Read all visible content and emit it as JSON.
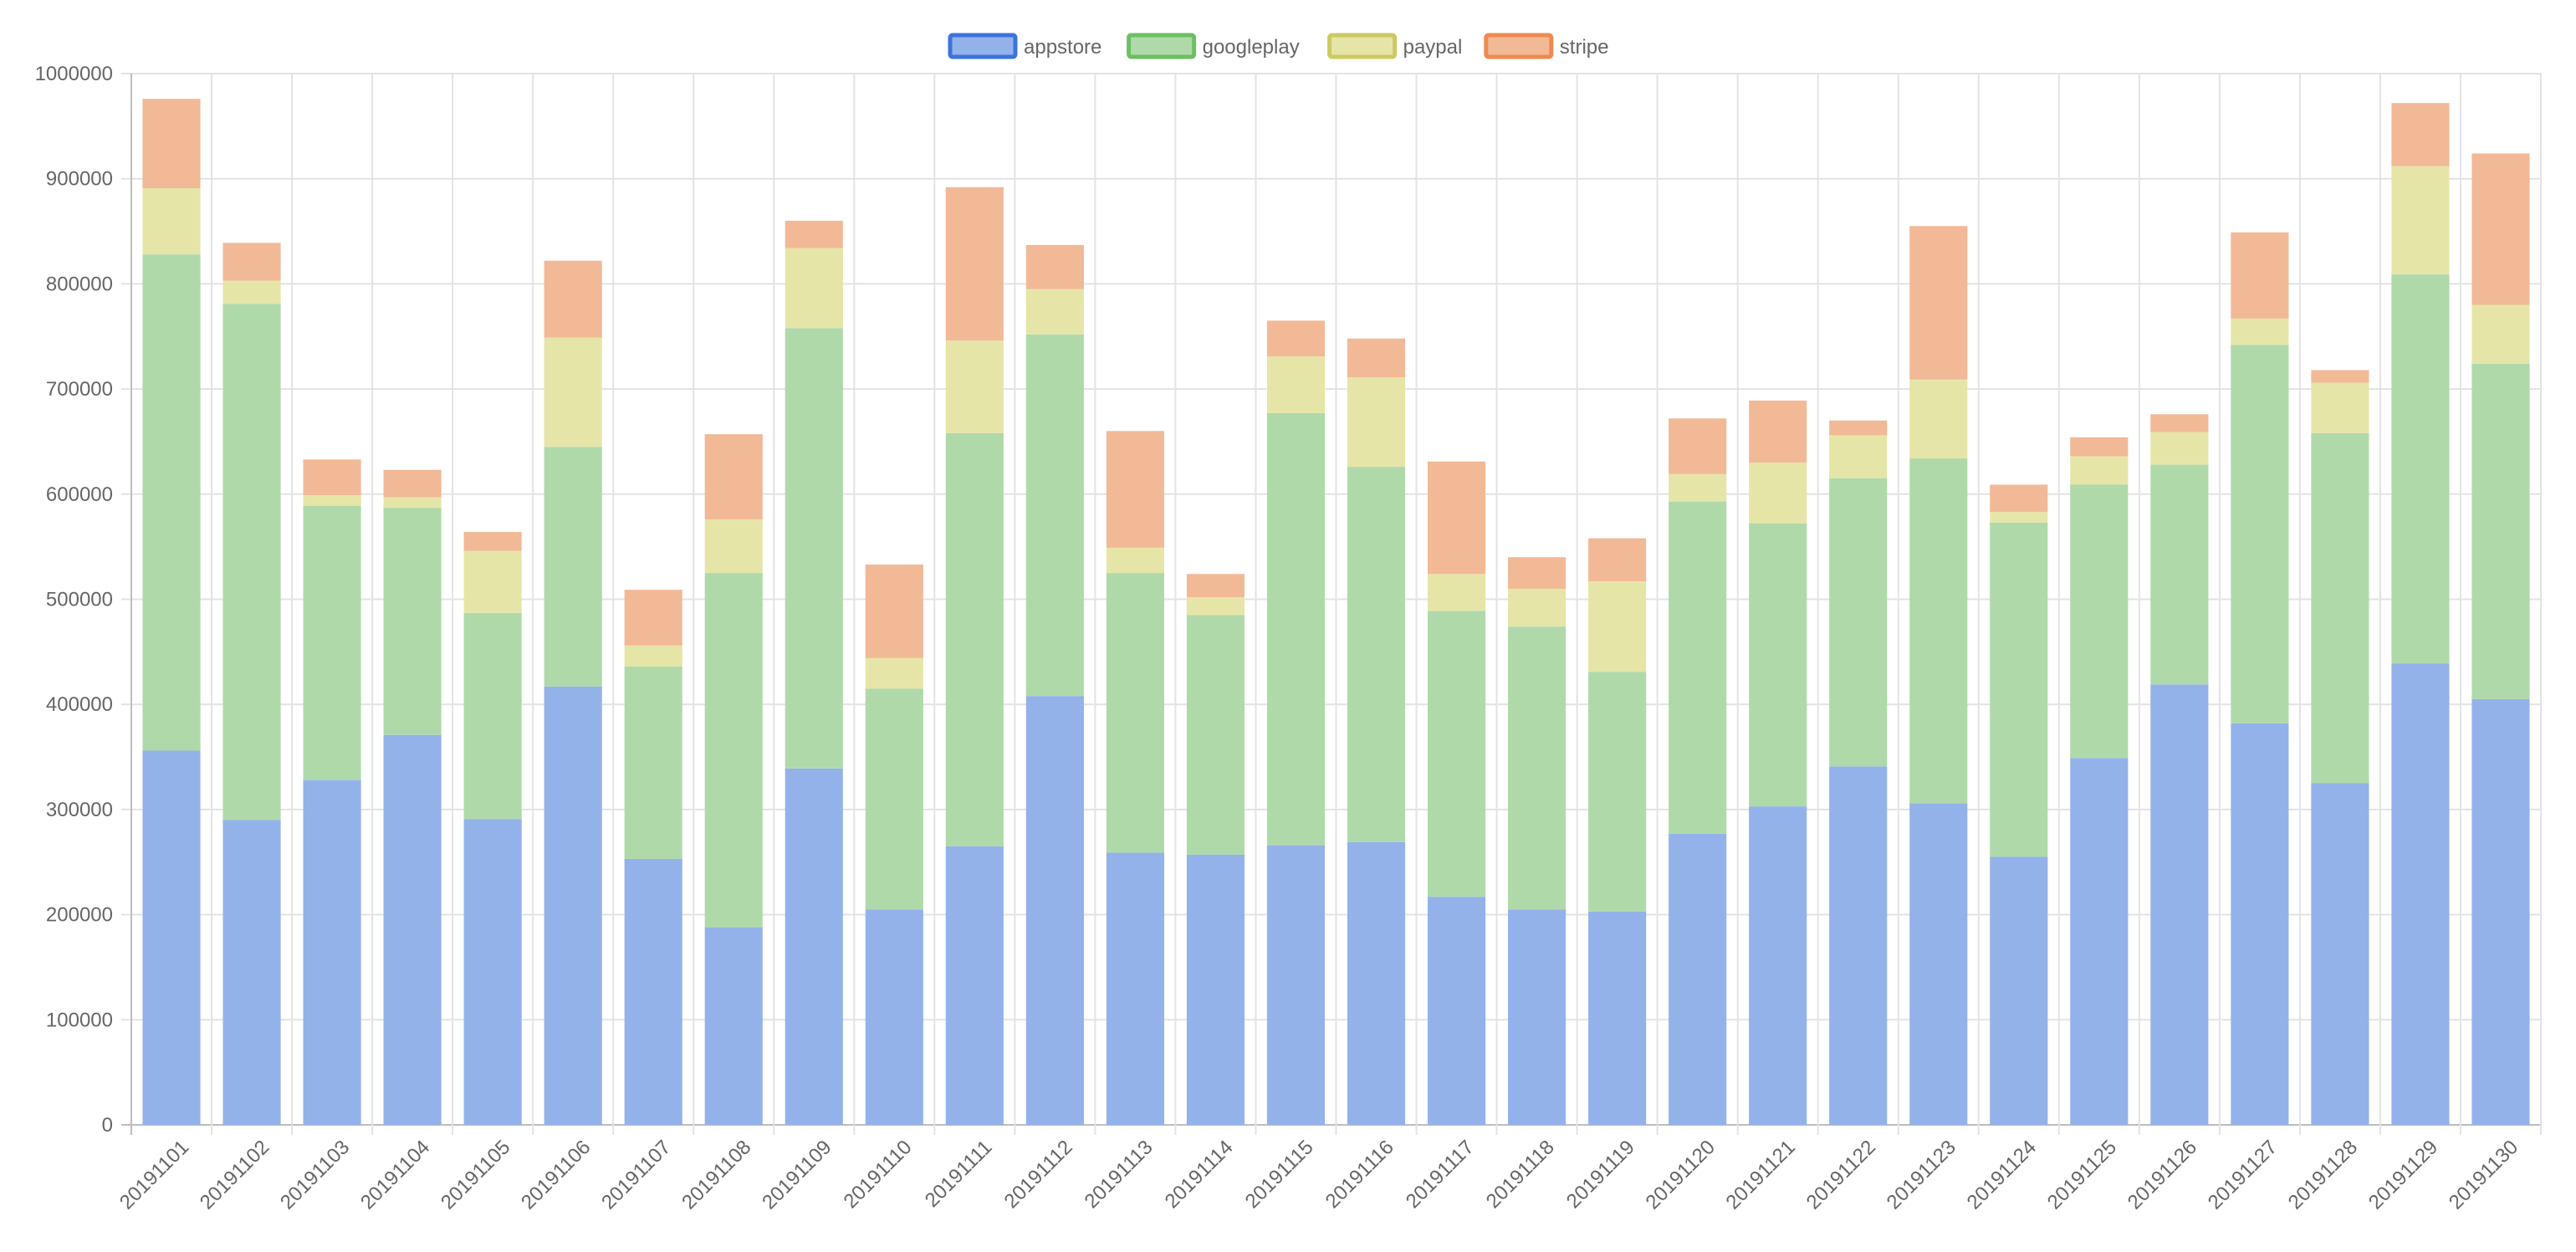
{
  "chart_data": {
    "type": "bar",
    "stacked": true,
    "categories": [
      "20191101",
      "20191102",
      "20191103",
      "20191104",
      "20191105",
      "20191106",
      "20191107",
      "20191108",
      "20191109",
      "20191110",
      "20191111",
      "20191112",
      "20191113",
      "20191114",
      "20191115",
      "20191116",
      "20191117",
      "20191118",
      "20191119",
      "20191120",
      "20191121",
      "20191122",
      "20191123",
      "20191124",
      "20191125",
      "20191126",
      "20191127",
      "20191128",
      "20191129",
      "20191130"
    ],
    "series": [
      {
        "name": "appstore",
        "fill": "#94b2ea",
        "border": "#3c74dc",
        "values": [
          356000,
          290000,
          328000,
          371000,
          291000,
          417000,
          253000,
          188000,
          339000,
          205000,
          265000,
          408000,
          259000,
          257000,
          266000,
          269000,
          217000,
          205000,
          203000,
          277000,
          303000,
          341000,
          306000,
          255000,
          349000,
          419000,
          382000,
          325000,
          439000,
          405000
        ]
      },
      {
        "name": "googleplay",
        "fill": "#b0d9aa",
        "border": "#6dbf63",
        "values": [
          472000,
          491000,
          261000,
          216000,
          196000,
          228000,
          183000,
          337000,
          419000,
          210000,
          393000,
          344000,
          266000,
          228000,
          411000,
          357000,
          272000,
          269000,
          228000,
          316000,
          269000,
          274000,
          328000,
          318000,
          260000,
          209000,
          360000,
          333000,
          370000,
          319000
        ]
      },
      {
        "name": "paypal",
        "fill": "#e6e5a8",
        "border": "#cbca61",
        "values": [
          63000,
          22000,
          10000,
          10000,
          59000,
          104000,
          20000,
          51000,
          76000,
          29000,
          88000,
          43000,
          24000,
          17000,
          54000,
          85000,
          35000,
          36000,
          86000,
          26000,
          58000,
          41000,
          75000,
          10000,
          27000,
          31000,
          25000,
          48000,
          103000,
          56000
        ]
      },
      {
        "name": "stripe",
        "fill": "#f2b996",
        "border": "#ee8a4f",
        "values": [
          85000,
          36000,
          34000,
          26000,
          18000,
          73000,
          53000,
          81000,
          26000,
          89000,
          146000,
          42000,
          111000,
          22000,
          34000,
          37000,
          107000,
          30000,
          41000,
          53000,
          59000,
          14000,
          146000,
          26000,
          18000,
          17000,
          82000,
          12000,
          60000,
          144000
        ]
      }
    ],
    "xlabel": "",
    "ylabel": "",
    "ylim": [
      0,
      1000000
    ],
    "ytick_step": 100000,
    "ytick_labels": [
      "0",
      "100000",
      "200000",
      "300000",
      "400000",
      "500000",
      "600000",
      "700000",
      "800000",
      "900000",
      "1000000"
    ],
    "grid": true,
    "legend_position": "top-center"
  }
}
